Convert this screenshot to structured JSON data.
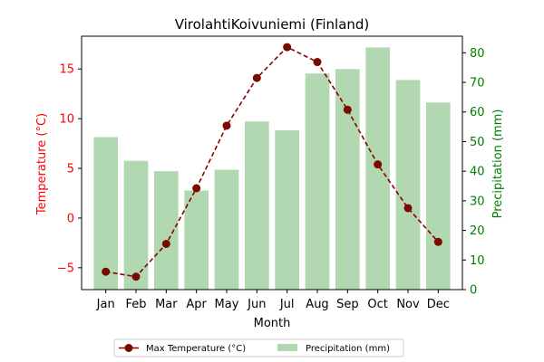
{
  "chart_data": {
    "type": "bar+line",
    "title": "VirolahtiKoivuniemi (Finland)",
    "xlabel": "Month",
    "ylabel_left": "Temperature (°C)",
    "ylabel_right": "Precipitation (mm)",
    "categories": [
      "Jan",
      "Feb",
      "Mar",
      "Apr",
      "May",
      "Jun",
      "Jul",
      "Aug",
      "Sep",
      "Oct",
      "Nov",
      "Dec"
    ],
    "series": [
      {
        "name": "Max Temperature (°C)",
        "type": "line",
        "axis": "left",
        "values": [
          -5.4,
          -5.9,
          -2.6,
          3.0,
          9.3,
          14.1,
          17.2,
          15.7,
          10.9,
          5.4,
          1.0,
          -2.4
        ]
      },
      {
        "name": "Precipitation (mm)",
        "type": "bar",
        "axis": "right",
        "values": [
          51.5,
          43.5,
          40,
          33.5,
          40.5,
          56.8,
          53.8,
          73,
          74.5,
          81.8,
          70.8,
          63.2
        ]
      }
    ],
    "ylim_left": [
      -7.2,
      18.3
    ],
    "yticks_left": [
      -5,
      0,
      5,
      10,
      15
    ],
    "ylim_right": [
      0,
      85.6
    ],
    "yticks_right": [
      0,
      10,
      20,
      30,
      40,
      50,
      60,
      70,
      80
    ],
    "legend": "below",
    "grid": false,
    "colors": {
      "line": "#8b0000",
      "marker": "#7a0a00",
      "bar": "#b1d8b1",
      "left_axis": "#ff0000",
      "right_axis": "#008000"
    }
  }
}
